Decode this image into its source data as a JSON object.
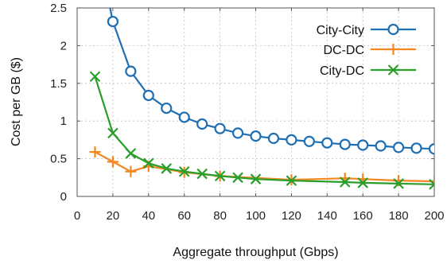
{
  "chart_data": {
    "type": "line",
    "xlabel": "Aggregate throughput (Gbps)",
    "ylabel": "Cost per GB ($)",
    "xlim": [
      0,
      200
    ],
    "ylim": [
      0,
      2.5
    ],
    "x_ticks": [
      0,
      20,
      40,
      60,
      80,
      100,
      120,
      140,
      160,
      180,
      200
    ],
    "y_ticks": [
      0,
      0.5,
      1,
      1.5,
      2,
      2.5
    ],
    "x_tick_labels": [
      "0",
      "20",
      "40",
      "60",
      "80",
      "100",
      "120",
      "140",
      "160",
      "180",
      "200"
    ],
    "y_tick_labels": [
      "0",
      "0.5",
      "1",
      "1.5",
      "2",
      "2.5"
    ],
    "grid": true,
    "legend_position": "top-right",
    "series": [
      {
        "name": "City-City",
        "color": "#1f6fb4",
        "marker": "circle",
        "x": [
          20,
          30,
          40,
          50,
          60,
          70,
          80,
          90,
          100,
          110,
          120,
          130,
          140,
          150,
          160,
          170,
          180,
          190,
          200
        ],
        "y": [
          2.32,
          1.66,
          1.34,
          1.17,
          1.05,
          0.96,
          0.9,
          0.84,
          0.8,
          0.77,
          0.75,
          0.73,
          0.71,
          0.69,
          0.68,
          0.67,
          0.65,
          0.64,
          0.63
        ],
        "line_start": {
          "x": 18,
          "y": 2.55
        }
      },
      {
        "name": "DC-DC",
        "color": "#f5861f",
        "marker": "plus",
        "x": [
          10,
          20,
          30,
          40,
          60,
          80,
          120,
          150,
          160,
          180,
          200
        ],
        "y": [
          0.59,
          0.46,
          0.33,
          0.4,
          0.32,
          0.27,
          0.22,
          0.24,
          0.23,
          0.21,
          0.2
        ]
      },
      {
        "name": "City-DC",
        "color": "#2a9e2a",
        "marker": "x",
        "x": [
          10,
          20,
          30,
          40,
          50,
          60,
          70,
          80,
          90,
          100,
          120,
          150,
          160,
          180,
          200
        ],
        "y": [
          1.59,
          0.84,
          0.57,
          0.44,
          0.37,
          0.33,
          0.3,
          0.27,
          0.25,
          0.23,
          0.21,
          0.19,
          0.18,
          0.17,
          0.16
        ]
      }
    ]
  }
}
